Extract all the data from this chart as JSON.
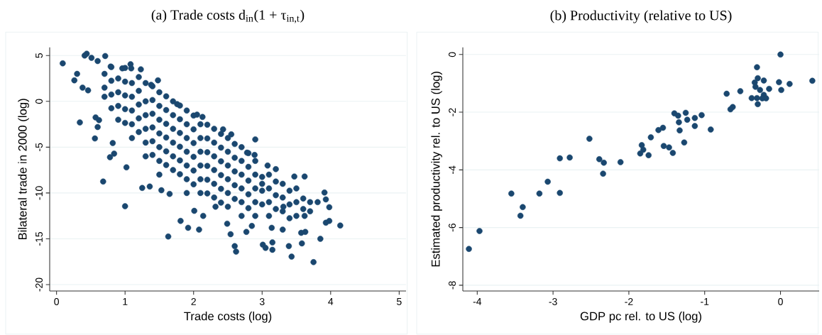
{
  "chart_data": [
    {
      "type": "scatter",
      "title": "(a) Trade costs d$_{in}$(1 + τ$_{in,t}$)",
      "xlabel": "Trade costs (log)",
      "ylabel": "Bilateral trade in 2000 (log)",
      "xlim": [
        -0.1,
        5.1
      ],
      "ylim": [
        -20.7,
        5.9
      ],
      "xticks": [
        0,
        1,
        2,
        3,
        4,
        5
      ],
      "yticks": [
        -20,
        -15,
        -10,
        -5,
        0,
        5
      ],
      "grid": "y",
      "marker": "circle",
      "series": [
        {
          "color": "#1a476f",
          "x": [
            0.09,
            0.44,
            0.41,
            0.51,
            0.71,
            0.26,
            0.3,
            0.38,
            0.46,
            0.34,
            0.56,
            0.68,
            1.0,
            0.57,
            0.62,
            0.6,
            0.78,
            0.84,
            0.82,
            1.02,
            1.25,
            1.36,
            1.53,
            1.65,
            1.63,
            1.81,
            1.92,
            2.08,
            2.14,
            2.01,
            2.32,
            2.49,
            2.54,
            2.6,
            2.62,
            2.77,
            2.85,
            3.01,
            3.05,
            3.15,
            3.15,
            3.39,
            3.43,
            3.75,
            3.58,
            3.85,
            4.14,
            3.98,
            3.93,
            3.98,
            3.93,
            3.91,
            3.81,
            3.63,
            3.57,
            3.62,
            3.6,
            3.62,
            3.47,
            3.3,
            3.14,
            3.31,
            3.2,
            2.9,
            2.55,
            2.43,
            2.13,
            2.05,
            1.76,
            1.48,
            1.38,
            1.08,
            1.09,
            0.96,
            1.23,
            0.79,
            0.6,
            3.0,
            3.08,
            2.89,
            2.78,
            0.7,
            0.7,
            0.7,
            0.9,
            0.9,
            0.9,
            0.9,
            1.1,
            1.1,
            1.1,
            1.1,
            1.1,
            1.3,
            1.3,
            1.3,
            1.3,
            1.3,
            1.3,
            1.5,
            1.5,
            1.5,
            1.5,
            1.5,
            1.5,
            1.5,
            1.7,
            1.7,
            1.7,
            1.7,
            1.7,
            1.7,
            1.9,
            1.9,
            1.9,
            1.9,
            1.9,
            1.9,
            1.9,
            2.1,
            2.1,
            2.1,
            2.1,
            2.1,
            2.1,
            2.3,
            2.3,
            2.3,
            2.3,
            2.3,
            2.3,
            2.5,
            2.5,
            2.5,
            2.5,
            2.5,
            2.5,
            2.7,
            2.7,
            2.7,
            2.7,
            2.7,
            2.7,
            2.9,
            2.9,
            2.9,
            2.9,
            2.9,
            3.1,
            3.1,
            3.1,
            3.1,
            3.3,
            3.3,
            3.3,
            3.5,
            3.5,
            3.5,
            3.7,
            3.7,
            0.8,
            0.8,
            0.8,
            0.8,
            1.0,
            1.0,
            1.0,
            1.0,
            1.0,
            1.2,
            1.2,
            1.2,
            1.2,
            1.2,
            1.4,
            1.4,
            1.4,
            1.4,
            1.4,
            1.4,
            1.6,
            1.6,
            1.6,
            1.6,
            1.6,
            1.6,
            1.8,
            1.8,
            1.8,
            1.8,
            1.8,
            1.8,
            2.0,
            2.0,
            2.0,
            2.0,
            2.0,
            2.0,
            2.2,
            2.2,
            2.2,
            2.2,
            2.2,
            2.2,
            2.4,
            2.4,
            2.4,
            2.4,
            2.4,
            2.4,
            2.6,
            2.6,
            2.6,
            2.6,
            2.6,
            2.8,
            2.8,
            2.8,
            2.8,
            2.8,
            3.0,
            3.0,
            3.0,
            3.2,
            3.2,
            3.2,
            3.4,
            3.4,
            3.4,
            3.6
          ],
          "values": [
            4.15,
            5.2,
            5.0,
            4.75,
            4.95,
            2.3,
            3.0,
            1.5,
            1.2,
            -2.3,
            -4.05,
            -8.75,
            -11.45,
            -1.75,
            -2.05,
            -2.8,
            -6.1,
            -5.7,
            -4.55,
            -7.2,
            -9.45,
            -9.3,
            -9.7,
            -10.1,
            -14.75,
            -13.05,
            -13.8,
            -14.0,
            -12.5,
            -11.95,
            -11.5,
            -13.35,
            -14.5,
            -15.8,
            -16.4,
            -14.25,
            -13.6,
            -15.65,
            -16.0,
            -15.4,
            -16.2,
            -15.8,
            -16.95,
            -17.55,
            -15.5,
            -15.0,
            -13.55,
            -13.05,
            -13.25,
            -11.55,
            -10.7,
            -9.95,
            -11.0,
            -14.25,
            -14.35,
            -12.5,
            -10.6,
            -8.2,
            -8.2,
            -14.0,
            -13.8,
            -11.5,
            -7.4,
            -4.15,
            -3.6,
            -3.05,
            -1.7,
            -1.45,
            -0.3,
            2.3,
            1.8,
            4.05,
            3.6,
            3.6,
            3.5,
            3.8,
            4.4,
            -9.0,
            -7.0,
            -5.85,
            -5.6,
            3.0,
            1.5,
            0.5,
            2.5,
            1.0,
            -0.5,
            -2.0,
            2.0,
            0.5,
            -1.0,
            -2.5,
            -4.0,
            2.0,
            0.0,
            -1.5,
            -3.0,
            -4.5,
            -6.0,
            1.0,
            -0.5,
            -2.0,
            -3.5,
            -5.0,
            -6.5,
            -8.0,
            0.0,
            -1.5,
            -3.0,
            -4.5,
            -6.0,
            -7.5,
            -1.0,
            -2.5,
            -4.0,
            -5.5,
            -7.0,
            -8.5,
            -10.0,
            -2.5,
            -4.0,
            -5.5,
            -7.0,
            -8.5,
            -10.0,
            -3.0,
            -4.5,
            -6.0,
            -7.5,
            -9.0,
            -10.5,
            -4.0,
            -5.5,
            -7.0,
            -8.5,
            -10.0,
            -11.5,
            -5.0,
            -6.5,
            -8.0,
            -9.5,
            -11.0,
            -12.5,
            -6.5,
            -8.0,
            -9.5,
            -11.0,
            -12.5,
            -8.0,
            -9.5,
            -11.0,
            -12.5,
            -9.0,
            -10.5,
            -12.0,
            -9.5,
            -11.0,
            -12.5,
            -11.0,
            -12.0,
            3.75,
            2.25,
            0.75,
            -0.75,
            3.65,
            2.15,
            0.65,
            -0.85,
            -2.35,
            2.65,
            1.15,
            -0.35,
            -1.85,
            -3.35,
            1.65,
            0.15,
            -1.35,
            -2.85,
            -4.35,
            -5.85,
            0.55,
            -0.95,
            -2.45,
            -3.95,
            -5.45,
            -6.95,
            -0.45,
            -1.95,
            -3.45,
            -4.95,
            -6.45,
            -7.95,
            -1.55,
            -3.05,
            -4.55,
            -6.05,
            -7.55,
            -9.05,
            -2.55,
            -4.05,
            -5.55,
            -7.05,
            -8.55,
            -10.05,
            -3.55,
            -5.05,
            -6.55,
            -8.05,
            -9.55,
            -11.05,
            -4.65,
            -6.15,
            -7.65,
            -9.15,
            -10.65,
            -5.65,
            -7.15,
            -8.65,
            -10.15,
            -11.65,
            -8.25,
            -9.75,
            -11.25,
            -8.75,
            -10.25,
            -11.75,
            -9.75,
            -11.25,
            -12.75,
            -11.75
          ]
        }
      ]
    },
    {
      "type": "scatter",
      "title": "(b) Productivity (relative to US)",
      "xlabel": "GDP pc rel. to US (log)",
      "ylabel": "Estimated productivity  rel. to US (log)",
      "xlim": [
        -4.19,
        0.51
      ],
      "ylim": [
        -8.2,
        0.25
      ],
      "xticks": [
        -4,
        -3,
        -2,
        -1,
        0
      ],
      "yticks": [
        -8,
        -6,
        -4,
        -2,
        0
      ],
      "grid": "y",
      "marker": "circle",
      "series": [
        {
          "color": "#1a476f",
          "x": [
            0,
            -0.31,
            0.42,
            -0.3,
            -0.22,
            -0.02,
            0.12,
            -0.34,
            -0.33,
            -0.27,
            -0.15,
            0.01,
            -0.53,
            -0.71,
            -0.38,
            -0.31,
            -0.22,
            -0.19,
            -0.24,
            -0.3,
            -0.63,
            -0.66,
            -1.4,
            -1.25,
            -1.35,
            -1.04,
            -1.13,
            -1.23,
            -1.34,
            -1.13,
            -0.92,
            -1.55,
            -1.61,
            -1.33,
            -1.71,
            -2.52,
            -1.83,
            -1.54,
            -1.47,
            -1.81,
            -1.27,
            -1.42,
            -1.85,
            -1.74,
            -2.91,
            -2.78,
            -2.39,
            -2.33,
            -2.11,
            -2.34,
            -3.07,
            -3.55,
            -3.18,
            -2.91,
            -3.4,
            -3.43,
            -3.97,
            -4.11
          ],
          "values": [
            0,
            -0.44,
            -0.91,
            -0.82,
            -0.9,
            -0.96,
            -1.02,
            -0.97,
            -1.12,
            -1.23,
            -1.19,
            -1.23,
            -1.27,
            -1.36,
            -1.51,
            -1.51,
            -1.4,
            -1.52,
            -1.52,
            -1.72,
            -1.82,
            -1.9,
            -2.04,
            -2.02,
            -2.12,
            -2.1,
            -2.2,
            -2.26,
            -2.35,
            -2.48,
            -2.6,
            -2.54,
            -2.62,
            -2.63,
            -2.87,
            -2.92,
            -3.14,
            -3.17,
            -3.22,
            -3.3,
            -3.05,
            -3.41,
            -3.43,
            -3.49,
            -3.6,
            -3.57,
            -3.63,
            -3.75,
            -3.73,
            -4.13,
            -4.41,
            -4.82,
            -4.82,
            -4.8,
            -5.29,
            -5.59,
            -6.12,
            -6.74
          ]
        }
      ]
    }
  ]
}
